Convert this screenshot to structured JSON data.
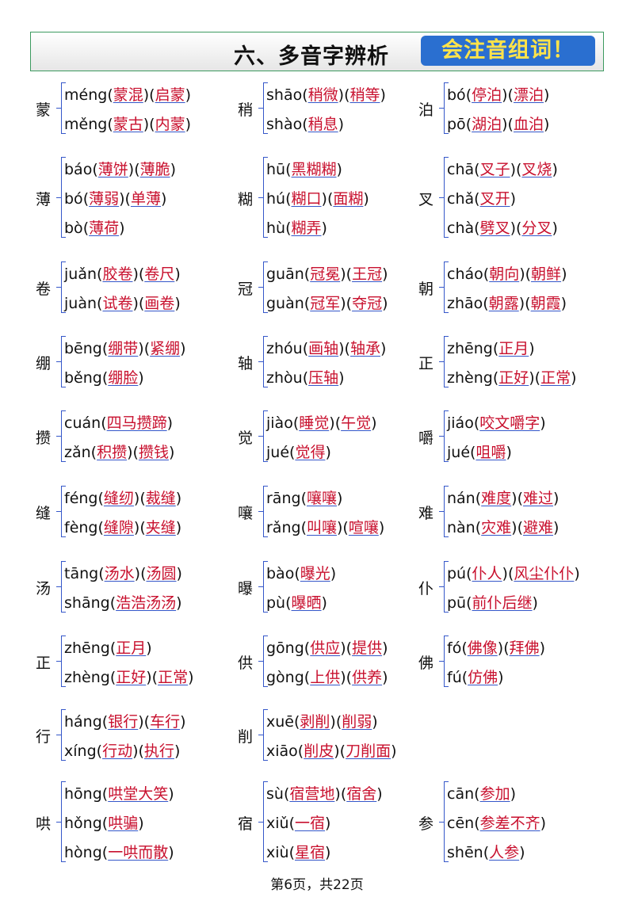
{
  "header": {
    "title": "六、多音字辨析",
    "badge": "会注音组词！"
  },
  "rows": [
    [
      {
        "char": "蒙",
        "readings": [
          {
            "pinyin": "méng",
            "words": [
              "蒙混",
              "启蒙"
            ]
          },
          {
            "pinyin": "měng",
            "words": [
              "蒙古",
              "内蒙"
            ]
          }
        ]
      },
      {
        "char": "稍",
        "readings": [
          {
            "pinyin": "shāo",
            "words": [
              "稍微",
              "稍等"
            ]
          },
          {
            "pinyin": "shào",
            "words": [
              "稍息"
            ]
          }
        ]
      },
      {
        "char": "泊",
        "readings": [
          {
            "pinyin": "bó",
            "words": [
              "停泊",
              "漂泊"
            ]
          },
          {
            "pinyin": "pō",
            "words": [
              "湖泊",
              "血泊"
            ]
          }
        ]
      }
    ],
    [
      {
        "char": "薄",
        "readings": [
          {
            "pinyin": "báo",
            "words": [
              "薄饼",
              "薄脆"
            ]
          },
          {
            "pinyin": "bó",
            "words": [
              "薄弱",
              "单薄"
            ]
          },
          {
            "pinyin": "bò",
            "words": [
              "薄荷"
            ]
          }
        ]
      },
      {
        "char": "糊",
        "readings": [
          {
            "pinyin": "hū",
            "words": [
              "黑糊糊"
            ]
          },
          {
            "pinyin": "hú",
            "words": [
              "糊口",
              "面糊"
            ]
          },
          {
            "pinyin": "hù",
            "words": [
              "糊弄"
            ]
          }
        ]
      },
      {
        "char": "叉",
        "readings": [
          {
            "pinyin": "chā",
            "words": [
              "叉子",
              "叉烧"
            ]
          },
          {
            "pinyin": "chǎ",
            "words": [
              "叉开"
            ]
          },
          {
            "pinyin": "chà",
            "words": [
              "劈叉",
              "分叉"
            ]
          }
        ]
      }
    ],
    [
      {
        "char": "卷",
        "readings": [
          {
            "pinyin": "juǎn",
            "words": [
              "胶卷",
              "卷尺"
            ]
          },
          {
            "pinyin": "juàn",
            "words": [
              "试卷",
              "画卷"
            ]
          }
        ]
      },
      {
        "char": "冠",
        "readings": [
          {
            "pinyin": "guān",
            "words": [
              "冠冕",
              "王冠"
            ]
          },
          {
            "pinyin": "guàn",
            "words": [
              "冠军",
              "夺冠"
            ]
          }
        ]
      },
      {
        "char": "朝",
        "readings": [
          {
            "pinyin": "cháo",
            "words": [
              "朝向",
              "朝鲜"
            ]
          },
          {
            "pinyin": "zhāo",
            "words": [
              "朝露",
              "朝霞"
            ]
          }
        ]
      }
    ],
    [
      {
        "char": "绷",
        "readings": [
          {
            "pinyin": "bēng",
            "words": [
              "绷带",
              "紧绷"
            ]
          },
          {
            "pinyin": "běng",
            "words": [
              "绷脸"
            ]
          }
        ]
      },
      {
        "char": "轴",
        "readings": [
          {
            "pinyin": "zhóu",
            "words": [
              "画轴",
              "轴承"
            ]
          },
          {
            "pinyin": "zhòu",
            "words": [
              "压轴"
            ]
          }
        ]
      },
      {
        "char": "正",
        "readings": [
          {
            "pinyin": "zhēng",
            "words": [
              "正月"
            ]
          },
          {
            "pinyin": "zhèng",
            "words": [
              "正好",
              "正常"
            ]
          }
        ]
      }
    ],
    [
      {
        "char": "攒",
        "readings": [
          {
            "pinyin": "cuán",
            "words": [
              "四马攒蹄"
            ]
          },
          {
            "pinyin": "zǎn",
            "words": [
              "积攒",
              "攒钱"
            ]
          }
        ]
      },
      {
        "char": "觉",
        "readings": [
          {
            "pinyin": "jiào",
            "words": [
              "睡觉",
              "午觉"
            ]
          },
          {
            "pinyin": "jué",
            "words": [
              "觉得"
            ]
          }
        ]
      },
      {
        "char": "嚼",
        "readings": [
          {
            "pinyin": "jiáo",
            "words": [
              "咬文嚼字"
            ]
          },
          {
            "pinyin": "jué",
            "words": [
              "咀嚼"
            ]
          }
        ]
      }
    ],
    [
      {
        "char": "缝",
        "readings": [
          {
            "pinyin": "féng",
            "words": [
              "缝纫",
              "裁缝"
            ]
          },
          {
            "pinyin": "fèng",
            "words": [
              "缝隙",
              "夹缝"
            ]
          }
        ]
      },
      {
        "char": "嚷",
        "readings": [
          {
            "pinyin": "rāng",
            "words": [
              "嚷嚷"
            ]
          },
          {
            "pinyin": "rǎng",
            "words": [
              "叫嚷",
              "喧嚷"
            ]
          }
        ]
      },
      {
        "char": "难",
        "readings": [
          {
            "pinyin": "nán",
            "words": [
              "难度",
              "难过"
            ]
          },
          {
            "pinyin": "nàn",
            "words": [
              "灾难",
              "避难"
            ]
          }
        ]
      }
    ],
    [
      {
        "char": "汤",
        "readings": [
          {
            "pinyin": "tāng",
            "words": [
              "汤水",
              "汤圆"
            ]
          },
          {
            "pinyin": "shāng",
            "words": [
              "浩浩汤汤"
            ]
          }
        ]
      },
      {
        "char": "曝",
        "readings": [
          {
            "pinyin": "bào",
            "words": [
              "曝光"
            ]
          },
          {
            "pinyin": "pù",
            "words": [
              "曝晒"
            ]
          }
        ]
      },
      {
        "char": "仆",
        "readings": [
          {
            "pinyin": "pú",
            "words": [
              "仆人",
              "风尘仆仆"
            ]
          },
          {
            "pinyin": "pū",
            "words": [
              "前仆后继"
            ]
          }
        ]
      }
    ],
    [
      {
        "char": "正",
        "readings": [
          {
            "pinyin": "zhēng",
            "words": [
              "正月"
            ]
          },
          {
            "pinyin": "zhèng",
            "words": [
              "正好",
              "正常"
            ]
          }
        ]
      },
      {
        "char": "供",
        "readings": [
          {
            "pinyin": "gōng",
            "words": [
              "供应",
              "提供"
            ]
          },
          {
            "pinyin": "gòng",
            "words": [
              "上供",
              "供养"
            ]
          }
        ]
      },
      {
        "char": "佛",
        "readings": [
          {
            "pinyin": "fó",
            "words": [
              "佛像",
              "拜佛"
            ]
          },
          {
            "pinyin": "fú",
            "words": [
              "仿佛"
            ]
          }
        ]
      }
    ],
    [
      {
        "char": "行",
        "readings": [
          {
            "pinyin": "háng",
            "words": [
              "银行",
              "车行"
            ]
          },
          {
            "pinyin": "xíng",
            "words": [
              "行动",
              "执行"
            ]
          }
        ]
      },
      {
        "char": "削",
        "readings": [
          {
            "pinyin": "xuē",
            "words": [
              "剥削",
              "削弱"
            ]
          },
          {
            "pinyin": "xiāo",
            "words": [
              "削皮",
              "刀削面"
            ]
          }
        ]
      }
    ],
    [
      {
        "char": "哄",
        "readings": [
          {
            "pinyin": "hōng",
            "words": [
              "哄堂大笑"
            ]
          },
          {
            "pinyin": "hǒng",
            "words": [
              "哄骗"
            ]
          },
          {
            "pinyin": "hòng",
            "words": [
              "一哄而散"
            ]
          }
        ]
      },
      {
        "char": "宿",
        "readings": [
          {
            "pinyin": "sù",
            "words": [
              "宿营地",
              "宿舍"
            ]
          },
          {
            "pinyin": "xiǔ",
            "words": [
              "一宿"
            ]
          },
          {
            "pinyin": "xiù",
            "words": [
              "星宿"
            ]
          }
        ]
      },
      {
        "char": "参",
        "readings": [
          {
            "pinyin": "cān",
            "words": [
              "参加"
            ]
          },
          {
            "pinyin": "cēn",
            "words": [
              "参差不齐"
            ]
          },
          {
            "pinyin": "shēn",
            "words": [
              "人参"
            ]
          }
        ]
      }
    ]
  ],
  "footer": "第6页，共22页"
}
